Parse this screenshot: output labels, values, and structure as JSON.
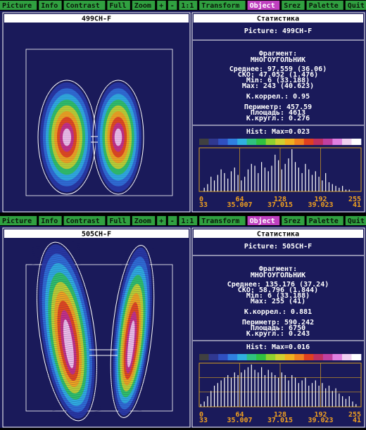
{
  "windows": [
    {
      "menu": [
        "Picture",
        "Info",
        "Contrast",
        "Full",
        "Zoom",
        "+",
        "-",
        "1:1",
        "Transform",
        "Object",
        "Srez",
        "Palette",
        "Quit"
      ],
      "picture_title": "499CH-F",
      "stats": {
        "title": "Статистика",
        "picture": "Picture: 499CH-F",
        "fragment_label": "Фрагмент:",
        "fragment": "МНОГОУГОЛЬНИК",
        "lines": [
          "Среднее: 97.559 (36.06)",
          "СКО: 47.052 (1.476)",
          "Min: 6 (33.188)",
          "Max: 243 (40.623)"
        ],
        "corr": "К.коррел.: 0.95",
        "geom": [
          "Периметр: 457.59",
          "Площадь: 4613",
          "К.кругл.: 0.276"
        ]
      },
      "hist": {
        "title": "Hist: Max=0.023",
        "ylim": [
          0,
          0.023
        ],
        "values": [
          0.0,
          0.002,
          0.004,
          0.008,
          0.006,
          0.009,
          0.012,
          0.01,
          0.007,
          0.011,
          0.013,
          0.009,
          0.006,
          0.008,
          0.012,
          0.015,
          0.014,
          0.01,
          0.016,
          0.013,
          0.011,
          0.014,
          0.02,
          0.017,
          0.012,
          0.015,
          0.018,
          0.023,
          0.016,
          0.013,
          0.01,
          0.015,
          0.012,
          0.009,
          0.011,
          0.008,
          0.006,
          0.01,
          0.005,
          0.004,
          0.003,
          0.002,
          0.003,
          0.001,
          0.001,
          0.0,
          0.0,
          0.0
        ],
        "x_labels": [
          "0",
          "64",
          "128",
          "192",
          "255"
        ],
        "t_labels": [
          "33",
          "35.007",
          "37.015",
          "39.023",
          "41"
        ]
      }
    },
    {
      "menu": [
        "Picture",
        "Info",
        "Contrast",
        "Full",
        "Zoom",
        "+",
        "-",
        "1:1",
        "Transform",
        "Object",
        "Srez",
        "Palette",
        "Quit"
      ],
      "picture_title": "505CH-F",
      "stats": {
        "title": "Статистика",
        "picture": "Picture: 505CH-F",
        "fragment_label": "Фрагмент:",
        "fragment": "МНОГОУГОЛЬНИК",
        "lines": [
          "Среднее: 135.176 (37.24)",
          "СКО: 58.796 (1.844)",
          "Min: 6 (33.188)",
          "Max: 255 (41)"
        ],
        "corr": "К.коррел.: 0.881",
        "geom": [
          "Периметр: 590.242",
          "Площадь: 6750",
          "К.кругл.: 0.243"
        ]
      },
      "hist": {
        "title": "Hist: Max=0.016",
        "ylim": [
          0,
          0.016
        ],
        "values": [
          0.001,
          0.002,
          0.004,
          0.006,
          0.008,
          0.009,
          0.01,
          0.011,
          0.012,
          0.011,
          0.013,
          0.012,
          0.013,
          0.014,
          0.015,
          0.016,
          0.014,
          0.013,
          0.015,
          0.012,
          0.014,
          0.013,
          0.012,
          0.011,
          0.013,
          0.012,
          0.01,
          0.012,
          0.011,
          0.009,
          0.01,
          0.011,
          0.008,
          0.009,
          0.01,
          0.008,
          0.009,
          0.007,
          0.008,
          0.006,
          0.007,
          0.005,
          0.004,
          0.003,
          0.004,
          0.002,
          0.001,
          0.0
        ],
        "x_labels": [
          "0",
          "64",
          "128",
          "192",
          "255"
        ],
        "t_labels": [
          "33",
          "35.007",
          "37.015",
          "39.023",
          "41"
        ]
      }
    }
  ]
}
